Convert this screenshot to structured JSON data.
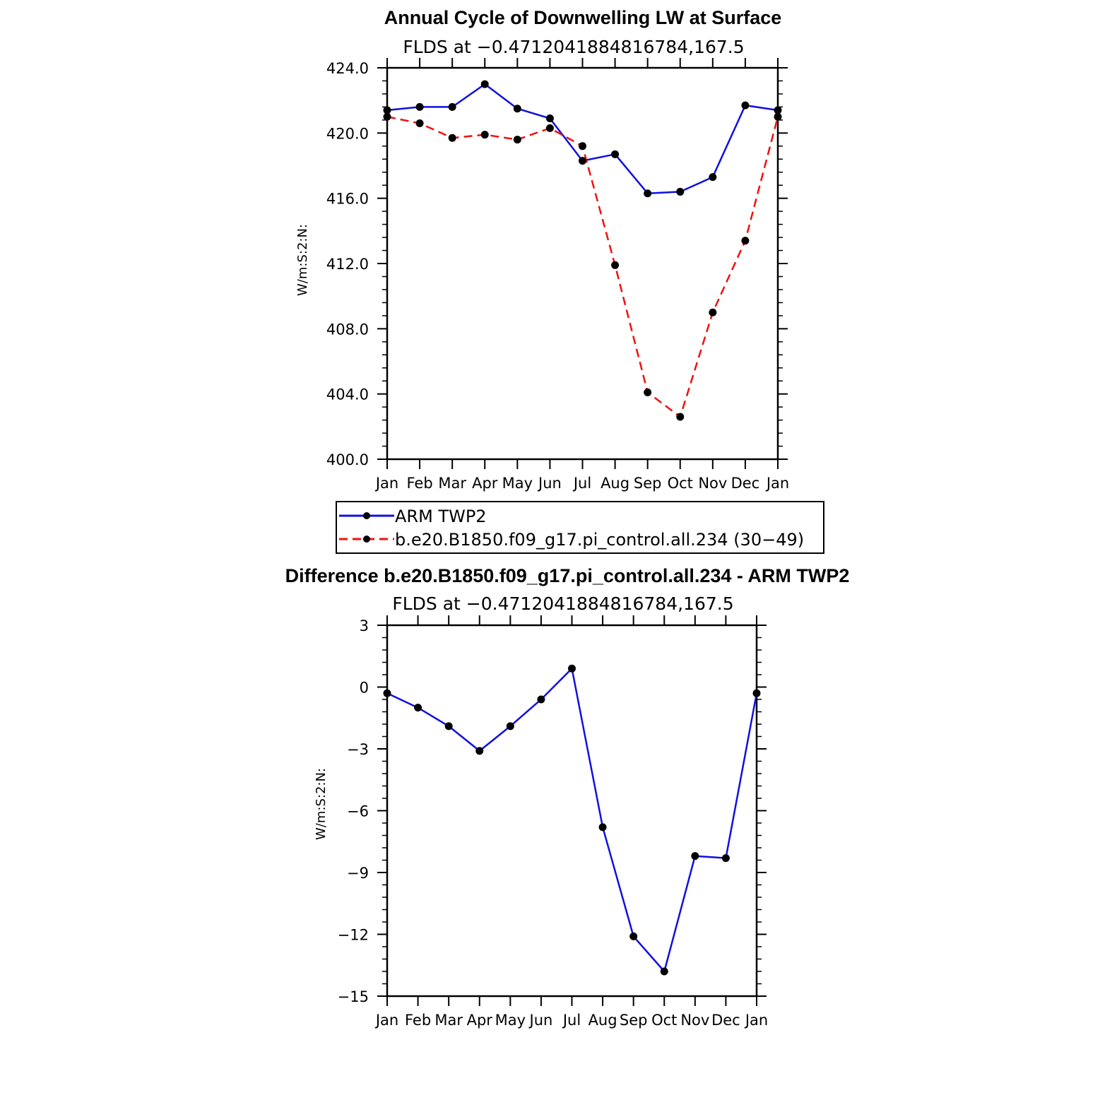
{
  "chart_data": [
    {
      "type": "line",
      "title": "Annual Cycle of Downwelling LW at Surface",
      "subtitle": "FLDS at −0.4712041884816784,167.5",
      "xlabel": "",
      "ylabel": "W/m:S:2:N:",
      "categories": [
        "Jan",
        "Feb",
        "Mar",
        "Apr",
        "May",
        "Jun",
        "Jul",
        "Aug",
        "Sep",
        "Oct",
        "Nov",
        "Dec",
        "Jan"
      ],
      "ylim": [
        400,
        424
      ],
      "yticks": [
        "400.0",
        "404.0",
        "408.0",
        "412.0",
        "416.0",
        "420.0",
        "424.0"
      ],
      "series": [
        {
          "name": "ARM TWP2",
          "color": "#1010e0",
          "dash": "solid",
          "values": [
            421.4,
            421.6,
            421.6,
            423.0,
            421.5,
            420.9,
            418.3,
            418.7,
            416.3,
            416.4,
            417.3,
            421.7,
            421.4
          ]
        },
        {
          "name": "b.e20.B1850.f09_g17.pi_control.all.234 (30−49)",
          "color": "#f01010",
          "dash": "dashed",
          "values": [
            421.0,
            420.6,
            419.7,
            419.9,
            419.6,
            420.3,
            419.2,
            411.9,
            404.1,
            402.6,
            409.0,
            413.4,
            421.0
          ]
        }
      ],
      "legend_position": "below"
    },
    {
      "type": "line",
      "title": "Difference b.e20.B1850.f09_g17.pi_control.all.234 - ARM TWP2",
      "subtitle": "FLDS at −0.4712041884816784,167.5",
      "xlabel": "",
      "ylabel": "W/m:S:2:N:",
      "categories": [
        "Jan",
        "Feb",
        "Mar",
        "Apr",
        "May",
        "Jun",
        "Jul",
        "Aug",
        "Sep",
        "Oct",
        "Nov",
        "Dec",
        "Jan"
      ],
      "ylim": [
        -15,
        3
      ],
      "yticks": [
        "−15",
        "−12",
        "−9",
        "−6",
        "−3",
        "0",
        "3"
      ],
      "series": [
        {
          "name": "Difference",
          "color": "#1010e0",
          "dash": "solid",
          "values": [
            -0.3,
            -1.0,
            -1.9,
            -3.1,
            -1.9,
            -0.6,
            0.9,
            -6.8,
            -12.1,
            -13.8,
            -8.2,
            -8.3,
            -0.3
          ]
        }
      ]
    }
  ]
}
